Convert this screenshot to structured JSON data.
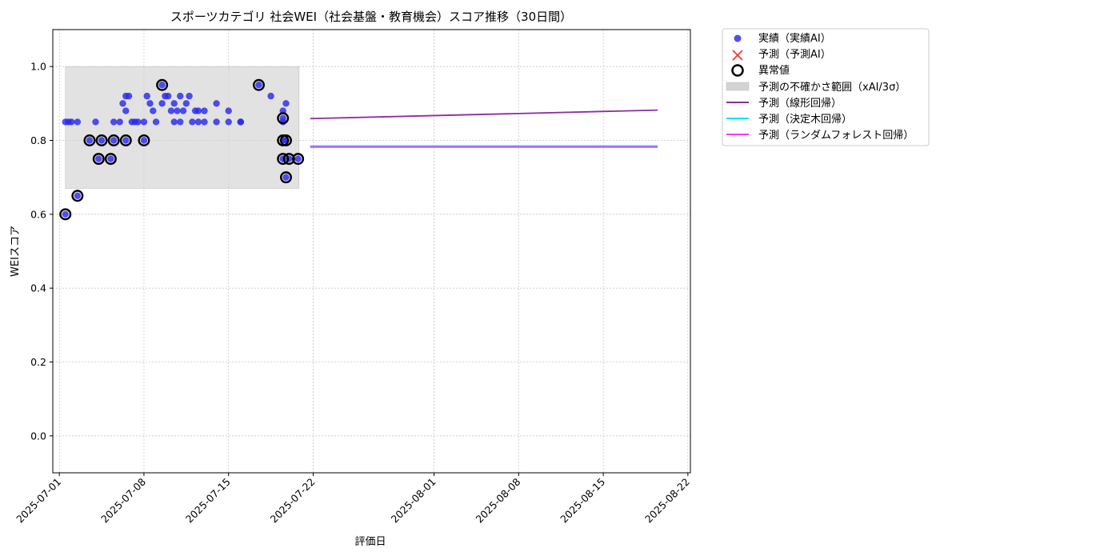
{
  "chart_data": {
    "type": "scatter",
    "title": "スポーツカテゴリ 社会WEI（社会基盤・教育機会）スコア推移（30日間）",
    "xlabel": "評価日",
    "ylabel": "WEIスコア",
    "x_domain": [
      "2025-06-30T11:00",
      "2025-08-22T05:00"
    ],
    "ylim": [
      -0.1,
      1.1
    ],
    "grid": true,
    "xticks": [
      "2025-07-01",
      "2025-07-08",
      "2025-07-15",
      "2025-07-22",
      "2025-08-01",
      "2025-08-08",
      "2025-08-15",
      "2025-08-22"
    ],
    "yticks": [
      0.0,
      0.2,
      0.4,
      0.6,
      0.8,
      1.0
    ],
    "ytick_labels": [
      "0.0",
      "0.2",
      "0.4",
      "0.6",
      "0.8",
      "1.0"
    ],
    "legend_position": "outside-top-right",
    "legend": {
      "actual": "実績（実績AI）",
      "predicted": "予測（予測AI）",
      "anomaly": "異常値",
      "uncertainty": "予測の不確かさ範囲（xAI/3σ）",
      "linear": "予測（線形回帰）",
      "tree": "予測（決定木回帰）",
      "forest": "予測（ランダムフォレスト回帰）"
    },
    "colors": {
      "actual": "#2a2af0",
      "predicted": "#ff3333",
      "anomaly": "#000000",
      "band": "#d3d3d3",
      "linear": "#8e2ba0",
      "tree": "#00e5ff",
      "forest": "#ff33ff"
    },
    "uncertainty_band": {
      "x_start": "2025-07-01T12:00",
      "x_end": "2025-07-20T20:00",
      "y_low": 0.67,
      "y_high": 1.0
    },
    "actual": [
      [
        "2025-07-01T12:00",
        0.85
      ],
      [
        "2025-07-01T18:00",
        0.85
      ],
      [
        "2025-07-02T00:00",
        0.85
      ],
      [
        "2025-07-02T12:00",
        0.85
      ],
      [
        "2025-07-04T00:00",
        0.85
      ],
      [
        "2025-07-05T12:00",
        0.85
      ],
      [
        "2025-07-06T00:00",
        0.85
      ],
      [
        "2025-07-06T06:00",
        0.9
      ],
      [
        "2025-07-06T12:00",
        0.88
      ],
      [
        "2025-07-06T12:00",
        0.92
      ],
      [
        "2025-07-06T18:00",
        0.92
      ],
      [
        "2025-07-07T00:00",
        0.85
      ],
      [
        "2025-07-07T06:00",
        0.85
      ],
      [
        "2025-07-07T12:00",
        0.85
      ],
      [
        "2025-07-08T00:00",
        0.85
      ],
      [
        "2025-07-08T06:00",
        0.92
      ],
      [
        "2025-07-08T12:00",
        0.9
      ],
      [
        "2025-07-08T18:00",
        0.88
      ],
      [
        "2025-07-09T00:00",
        0.85
      ],
      [
        "2025-07-09T12:00",
        0.9
      ],
      [
        "2025-07-09T18:00",
        0.92
      ],
      [
        "2025-07-10T00:00",
        0.92
      ],
      [
        "2025-07-10T06:00",
        0.88
      ],
      [
        "2025-07-10T12:00",
        0.9
      ],
      [
        "2025-07-10T12:00",
        0.85
      ],
      [
        "2025-07-10T18:00",
        0.88
      ],
      [
        "2025-07-11T00:00",
        0.85
      ],
      [
        "2025-07-11T00:00",
        0.92
      ],
      [
        "2025-07-11T06:00",
        0.88
      ],
      [
        "2025-07-11T12:00",
        0.9
      ],
      [
        "2025-07-11T18:00",
        0.92
      ],
      [
        "2025-07-12T00:00",
        0.85
      ],
      [
        "2025-07-12T06:00",
        0.88
      ],
      [
        "2025-07-12T12:00",
        0.85
      ],
      [
        "2025-07-12T12:00",
        0.88
      ],
      [
        "2025-07-13T00:00",
        0.85
      ],
      [
        "2025-07-13T00:00",
        0.88
      ],
      [
        "2025-07-14T00:00",
        0.85
      ],
      [
        "2025-07-14T00:00",
        0.9
      ],
      [
        "2025-07-15T00:00",
        0.85
      ],
      [
        "2025-07-15T00:00",
        0.88
      ],
      [
        "2025-07-16T00:00",
        0.85
      ],
      [
        "2025-07-16T00:00",
        0.85
      ],
      [
        "2025-07-18T12:00",
        0.92
      ],
      [
        "2025-07-19T12:00",
        0.88
      ],
      [
        "2025-07-19T12:00",
        0.85
      ],
      [
        "2025-07-19T18:00",
        0.9
      ],
      [
        "2025-07-01T12:00",
        0.6
      ],
      [
        "2025-07-02T12:00",
        0.65
      ],
      [
        "2025-07-03T12:00",
        0.8
      ],
      [
        "2025-07-04T06:00",
        0.75
      ],
      [
        "2025-07-04T12:00",
        0.8
      ],
      [
        "2025-07-05T06:00",
        0.75
      ],
      [
        "2025-07-05T12:00",
        0.8
      ],
      [
        "2025-07-06T12:00",
        0.8
      ],
      [
        "2025-07-08T00:00",
        0.8
      ],
      [
        "2025-07-09T12:00",
        0.95
      ],
      [
        "2025-07-17T12:00",
        0.95
      ],
      [
        "2025-07-19T12:00",
        0.86
      ],
      [
        "2025-07-19T12:00",
        0.8
      ],
      [
        "2025-07-19T12:00",
        0.75
      ],
      [
        "2025-07-19T18:00",
        0.8
      ],
      [
        "2025-07-19T18:00",
        0.7
      ],
      [
        "2025-07-20T00:00",
        0.75
      ],
      [
        "2025-07-20T18:00",
        0.75
      ]
    ],
    "anomalies": [
      [
        "2025-07-01T12:00",
        0.6
      ],
      [
        "2025-07-02T12:00",
        0.65
      ],
      [
        "2025-07-03T12:00",
        0.8
      ],
      [
        "2025-07-04T06:00",
        0.75
      ],
      [
        "2025-07-04T12:00",
        0.8
      ],
      [
        "2025-07-05T06:00",
        0.75
      ],
      [
        "2025-07-05T12:00",
        0.8
      ],
      [
        "2025-07-06T12:00",
        0.8
      ],
      [
        "2025-07-08T00:00",
        0.8
      ],
      [
        "2025-07-09T12:00",
        0.95
      ],
      [
        "2025-07-17T12:00",
        0.95
      ],
      [
        "2025-07-19T12:00",
        0.86
      ],
      [
        "2025-07-19T12:00",
        0.8
      ],
      [
        "2025-07-19T12:00",
        0.75
      ],
      [
        "2025-07-19T18:00",
        0.8
      ],
      [
        "2025-07-19T18:00",
        0.7
      ],
      [
        "2025-07-20T00:00",
        0.75
      ],
      [
        "2025-07-20T18:00",
        0.75
      ]
    ],
    "forecast_lines": [
      {
        "key": "linear",
        "start": [
          "2025-07-21T18:00",
          0.859
        ],
        "end": [
          "2025-08-19T12:00",
          0.882
        ]
      },
      {
        "key": "tree",
        "start": [
          "2025-07-21T18:00",
          0.785
        ],
        "end": [
          "2025-08-19T12:00",
          0.785
        ]
      },
      {
        "key": "forest",
        "start": [
          "2025-07-21T18:00",
          0.782
        ],
        "end": [
          "2025-08-19T12:00",
          0.782
        ]
      }
    ]
  }
}
